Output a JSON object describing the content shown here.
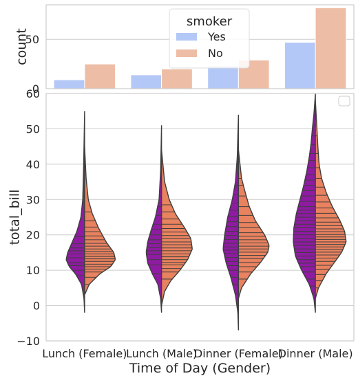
{
  "chart_data": [
    {
      "type": "bar",
      "xlabel": "",
      "ylabel": "count",
      "ylim": [
        0,
        85
      ],
      "yticks": [
        0,
        50
      ],
      "grid": "y",
      "categories": [
        "Lunch (Female)",
        "Lunch (Male)",
        "Dinner (Female)",
        "Dinner (Male)"
      ],
      "legend": {
        "title": "smoker",
        "position": "top-center"
      },
      "series": [
        {
          "name": "Yes",
          "color": "#b3c8f6",
          "values": [
            9,
            14,
            23,
            47
          ]
        },
        {
          "name": "No",
          "color": "#eebda5",
          "values": [
            25,
            20,
            29,
            82
          ]
        }
      ]
    },
    {
      "type": "violin",
      "xlabel": "Time of Day (Gender)",
      "ylabel": "total_bill",
      "ylim": [
        -10,
        60
      ],
      "yticks": [
        -10,
        0,
        10,
        20,
        30,
        40,
        50,
        60
      ],
      "grid": "y",
      "categories": [
        "Lunch (Female)",
        "Lunch (Male)",
        "Dinner (Female)",
        "Dinner (Male)"
      ],
      "legend": {
        "position": "top-right",
        "entries": []
      },
      "split": true,
      "inner": "stick",
      "halves": [
        {
          "side": "left",
          "color": "#8e1ba1"
        },
        {
          "side": "right",
          "color": "#e8825f"
        }
      ],
      "violins": [
        {
          "category": "Lunch (Female)",
          "left": {
            "range": [
              -2,
              55
            ],
            "profile": [
              [
                -2,
                0
              ],
              [
                2,
                0.02
              ],
              [
                6,
                0.1
              ],
              [
                9,
                0.3
              ],
              [
                11,
                0.5
              ],
              [
                13,
                0.6
              ],
              [
                15,
                0.55
              ],
              [
                18,
                0.4
              ],
              [
                21,
                0.25
              ],
              [
                25,
                0.12
              ],
              [
                30,
                0.06
              ],
              [
                40,
                0.03
              ],
              [
                55,
                0
              ]
            ]
          },
          "right": {
            "range": [
              3,
              45
            ],
            "profile": [
              [
                3,
                0
              ],
              [
                6,
                0.15
              ],
              [
                9,
                0.5
              ],
              [
                11,
                0.85
              ],
              [
                13,
                1.0
              ],
              [
                15,
                0.95
              ],
              [
                18,
                0.7
              ],
              [
                22,
                0.45
              ],
              [
                26,
                0.25
              ],
              [
                30,
                0.12
              ],
              [
                36,
                0.05
              ],
              [
                45,
                0
              ]
            ]
          },
          "left_sticks": [
            8.5,
            10,
            11.3,
            12.2,
            13.5,
            14.6,
            15.5,
            16.3,
            17.5,
            19.5
          ],
          "right_sticks": [
            6,
            8,
            9.5,
            10.3,
            11,
            11.7,
            12.5,
            13.2,
            13.9,
            14.6,
            15.3,
            16,
            16.8,
            17.6,
            18.6,
            19.7,
            20.9,
            22.2,
            24,
            26.5
          ]
        },
        {
          "category": "Lunch (Male)",
          "left": {
            "range": [
              -2,
              51
            ],
            "profile": [
              [
                -2,
                0
              ],
              [
                2,
                0.03
              ],
              [
                6,
                0.12
              ],
              [
                9,
                0.3
              ],
              [
                12,
                0.45
              ],
              [
                15,
                0.5
              ],
              [
                18,
                0.45
              ],
              [
                21,
                0.35
              ],
              [
                25,
                0.2
              ],
              [
                30,
                0.08
              ],
              [
                38,
                0.03
              ],
              [
                51,
                0
              ]
            ]
          },
          "right": {
            "range": [
              0,
              44
            ],
            "profile": [
              [
                0,
                0
              ],
              [
                4,
                0.1
              ],
              [
                7,
                0.3
              ],
              [
                10,
                0.6
              ],
              [
                13,
                0.85
              ],
              [
                16,
                1.0
              ],
              [
                19,
                0.95
              ],
              [
                22,
                0.75
              ],
              [
                26,
                0.45
              ],
              [
                30,
                0.25
              ],
              [
                35,
                0.1
              ],
              [
                44,
                0
              ]
            ]
          },
          "left_sticks": [
            9,
            11.5,
            13,
            14.5,
            15.5,
            16.4,
            17.5,
            18.6,
            20,
            21.5,
            23,
            25.5,
            28,
            31
          ],
          "right_sticks": [
            7.5,
            9.5,
            10.5,
            11.5,
            12.2,
            13,
            13.8,
            14.6,
            15.5,
            16.3,
            17.2,
            18,
            18.9,
            19.8,
            20.8,
            21.8,
            23,
            24.5,
            26.5,
            28.5
          ]
        },
        {
          "category": "Dinner (Female)",
          "left": {
            "range": [
              -7,
              54
            ],
            "profile": [
              [
                -7,
                0
              ],
              [
                -2,
                0.02
              ],
              [
                3,
                0.1
              ],
              [
                8,
                0.25
              ],
              [
                12,
                0.4
              ],
              [
                16,
                0.5
              ],
              [
                20,
                0.45
              ],
              [
                25,
                0.35
              ],
              [
                30,
                0.2
              ],
              [
                35,
                0.1
              ],
              [
                42,
                0.04
              ],
              [
                54,
                0
              ]
            ]
          },
          "right": {
            "range": [
              2,
              44
            ],
            "profile": [
              [
                2,
                0
              ],
              [
                5,
                0.1
              ],
              [
                9,
                0.4
              ],
              [
                12,
                0.7
              ],
              [
                15,
                0.95
              ],
              [
                17,
                1.0
              ],
              [
                20,
                0.85
              ],
              [
                24,
                0.55
              ],
              [
                28,
                0.35
              ],
              [
                32,
                0.22
              ],
              [
                36,
                0.1
              ],
              [
                44,
                0
              ]
            ]
          },
          "left_sticks": [
            3.5,
            6,
            8,
            10,
            11.3,
            12.5,
            13.6,
            14.7,
            15.7,
            16.6,
            17.6,
            18.7,
            19.8,
            21,
            22.3,
            23.7,
            25.2,
            27,
            29,
            31.5,
            34,
            37.5,
            40,
            43
          ],
          "right_sticks": [
            7.5,
            9.5,
            11,
            12.2,
            13.3,
            14.2,
            15.1,
            16,
            16.8,
            17.7,
            18.6,
            19.6,
            20.6,
            22,
            23.5,
            25.5,
            28,
            31,
            34,
            36
          ]
        },
        {
          "category": "Dinner (Male)",
          "left": {
            "range": [
              -2,
              60
            ],
            "profile": [
              [
                -2,
                0
              ],
              [
                2,
                0.05
              ],
              [
                6,
                0.2
              ],
              [
                10,
                0.45
              ],
              [
                14,
                0.65
              ],
              [
                18,
                0.72
              ],
              [
                22,
                0.7
              ],
              [
                26,
                0.62
              ],
              [
                30,
                0.5
              ],
              [
                34,
                0.38
              ],
              [
                38,
                0.28
              ],
              [
                42,
                0.2
              ],
              [
                46,
                0.14
              ],
              [
                50,
                0.1
              ],
              [
                54,
                0.05
              ],
              [
                60,
                0
              ]
            ]
          },
          "right": {
            "range": [
              2,
              58
            ],
            "profile": [
              [
                2,
                0
              ],
              [
                5,
                0.1
              ],
              [
                9,
                0.35
              ],
              [
                12,
                0.6
              ],
              [
                15,
                0.85
              ],
              [
                18,
                1.0
              ],
              [
                21,
                0.95
              ],
              [
                24,
                0.8
              ],
              [
                28,
                0.55
              ],
              [
                32,
                0.35
              ],
              [
                36,
                0.2
              ],
              [
                40,
                0.12
              ],
              [
                45,
                0.08
              ],
              [
                50,
                0.05
              ],
              [
                58,
                0
              ]
            ]
          },
          "left_sticks": [
            3.5,
            5.5,
            7.5,
            9.5,
            11,
            12,
            13,
            14,
            15,
            16,
            17,
            18,
            19,
            20,
            21,
            22,
            23,
            24,
            25,
            26,
            27,
            28,
            29.5,
            31,
            32.5,
            34,
            35.5,
            37,
            39,
            41,
            43,
            45.5,
            48,
            51
          ],
          "right_sticks": [
            5,
            7,
            8.8,
            10.2,
            11.4,
            12.5,
            13.4,
            14.3,
            15.1,
            15.9,
            16.6,
            17.3,
            18,
            18.7,
            19.4,
            20.1,
            20.9,
            21.7,
            22.6,
            23.6,
            24.8,
            26.1,
            27.6,
            29.3,
            31.2,
            33.5,
            36,
            39,
            43,
            48
          ]
        }
      ]
    }
  ]
}
